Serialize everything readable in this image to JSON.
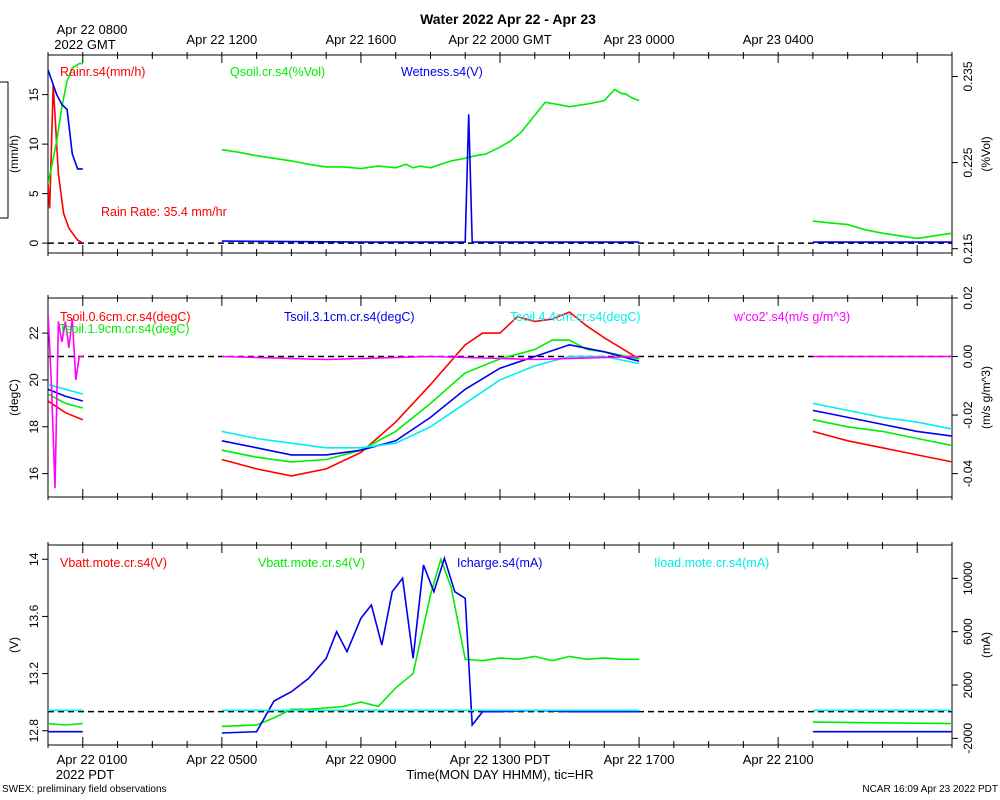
{
  "title": "Water 2022 Apr 22 - Apr 23",
  "top_axis": {
    "ticks": [
      {
        "label": "Apr 22 0800",
        "x": 1
      },
      {
        "label": "Apr 22 1200",
        "x": 5
      },
      {
        "label": "Apr 22 1600",
        "x": 9
      },
      {
        "label": "Apr 22 2000 GMT",
        "x": 13
      },
      {
        "label": "Apr 23 0000",
        "x": 17
      },
      {
        "label": "Apr 23 0400",
        "x": 21
      }
    ],
    "sub_label": "2022 GMT"
  },
  "bottom_axis": {
    "ticks": [
      {
        "label": "Apr 22 0100",
        "x": 1
      },
      {
        "label": "Apr 22 0500",
        "x": 5
      },
      {
        "label": "Apr 22 0900",
        "x": 9
      },
      {
        "label": "Apr 22 1300 PDT",
        "x": 13
      },
      {
        "label": "Apr 22 1700",
        "x": 17
      },
      {
        "label": "Apr 22 2100",
        "x": 21
      }
    ],
    "sub_label": "2022 PDT",
    "xlabel": "Time(MON DAY HHMM), tic=HR"
  },
  "footer": {
    "left": "SWEX: preliminary field observations",
    "right": "NCAR 16:09 Apr 23 2022 PDT"
  },
  "chart_data": [
    {
      "type": "line",
      "panel": "top",
      "x_unit": "hours since Apr 22 0000 PDT",
      "xlim": [
        0,
        26
      ],
      "left_axis": {
        "label": "(mm/h)",
        "ylim": [
          -1,
          19
        ],
        "ticks": [
          0,
          5,
          10,
          15
        ]
      },
      "right_axis": {
        "label": "(%Vol)",
        "ylim": [
          0.2145,
          0.2375
        ],
        "ticks": [
          0.215,
          0.225,
          0.235
        ],
        "tick_labels": [
          "0.215",
          "0.225",
          "0.235"
        ]
      },
      "annotation": {
        "text": "Rain Rate: 35.4 mm/hr",
        "color": "#ff0000"
      },
      "reference_line": {
        "value": 0,
        "axis": "left"
      },
      "series": [
        {
          "name": "Rainr.s4(mm/h)",
          "color": "#ff0000",
          "axis": "left",
          "x": [
            0.0,
            0.05,
            0.15,
            0.3,
            0.45,
            0.6,
            0.85,
            1.0
          ],
          "y": [
            6.0,
            3.5,
            16.0,
            7.0,
            3.0,
            1.5,
            0.3,
            0.0
          ]
        },
        {
          "name": "Qsoil.cr.s4(%Vol)",
          "color": "#00ee00",
          "axis": "right",
          "x": [
            0.0,
            0.1,
            0.25,
            0.4,
            0.55,
            0.7,
            0.9,
            1.0,
            null,
            5.0,
            5.5,
            6.0,
            6.5,
            7.0,
            7.5,
            8.0,
            8.5,
            9.0,
            9.5,
            10.0,
            10.3,
            10.5,
            10.7,
            11.0,
            11.3,
            11.6,
            12.0,
            12.3,
            12.6,
            13.0,
            13.3,
            13.6,
            14.0,
            14.3,
            14.6,
            15.0,
            15.5,
            16.0,
            16.3,
            16.5,
            16.6,
            16.8,
            17.0,
            null,
            22.0,
            22.5,
            23.0,
            23.5,
            24.0,
            24.5,
            25.0,
            25.5,
            26.0
          ],
          "y": [
            0.2225,
            0.2245,
            0.2275,
            0.2315,
            0.2345,
            0.236,
            0.2365,
            0.2365,
            null,
            0.2265,
            0.2262,
            0.2258,
            0.2255,
            0.2252,
            0.2248,
            0.2245,
            0.2245,
            0.2243,
            0.2246,
            0.2244,
            0.2248,
            0.2244,
            0.2246,
            0.2244,
            0.2248,
            0.2252,
            0.2255,
            0.2258,
            0.226,
            0.2268,
            0.2275,
            0.2285,
            0.2305,
            0.232,
            0.2318,
            0.2315,
            0.2318,
            0.2322,
            0.2335,
            0.233,
            0.233,
            0.2325,
            0.2322,
            null,
            0.2182,
            0.218,
            0.2178,
            0.2172,
            0.2168,
            0.2165,
            0.2162,
            0.2165,
            0.2168
          ]
        },
        {
          "name": "Wetness.s4(V)",
          "color": "#0000ee",
          "axis": "left",
          "x": [
            0.0,
            0.1,
            0.25,
            0.4,
            0.55,
            0.7,
            0.85,
            1.0,
            null,
            5.0,
            7.0,
            9.0,
            11.0,
            12.0,
            12.1,
            12.2,
            12.3,
            14.0,
            17.0,
            null,
            22.0,
            26.0
          ],
          "y": [
            17.5,
            16.5,
            15.0,
            14.0,
            13.5,
            9.0,
            7.5,
            7.5,
            null,
            0.2,
            0.15,
            0.1,
            0.1,
            0.1,
            13.0,
            0.1,
            0.1,
            0.1,
            0.1,
            null,
            0.1,
            0.1
          ]
        }
      ]
    },
    {
      "type": "line",
      "panel": "middle",
      "x_unit": "hours since Apr 22 0000 PDT",
      "xlim": [
        0,
        26
      ],
      "left_axis": {
        "label": "(degC)",
        "ylim": [
          15,
          23.5
        ],
        "ticks": [
          16,
          18,
          20,
          22
        ]
      },
      "right_axis": {
        "label": "(m/s g/m^3)",
        "ylim": [
          -0.048,
          0.02
        ],
        "ticks": [
          -0.04,
          -0.02,
          0.0,
          0.02
        ],
        "tick_labels": [
          "-0.04",
          "-0.02",
          "0.00",
          "0.02"
        ]
      },
      "reference_line": {
        "value": 0.0,
        "axis": "right"
      },
      "series": [
        {
          "name": "Tsoil.0.6cm.cr.s4(degC)",
          "color": "#ff0000",
          "axis": "left",
          "x": [
            0.0,
            0.5,
            1.0,
            null,
            5.0,
            6.0,
            7.0,
            8.0,
            9.0,
            10.0,
            11.0,
            12.0,
            12.5,
            13.0,
            13.5,
            14.0,
            14.5,
            15.0,
            15.5,
            16.0,
            17.0,
            null,
            22.0,
            23.0,
            24.0,
            25.0,
            26.0
          ],
          "y": [
            19.1,
            18.6,
            18.3,
            null,
            16.6,
            16.2,
            15.9,
            16.2,
            16.9,
            18.2,
            19.8,
            21.5,
            22.0,
            22.0,
            22.7,
            22.5,
            22.6,
            22.9,
            22.3,
            21.8,
            20.9,
            null,
            17.8,
            17.4,
            17.1,
            16.8,
            16.5
          ]
        },
        {
          "name": "Tsoil.1.9cm.cr.s4(degC)",
          "color": "#00ee00",
          "axis": "left",
          "x": [
            0.0,
            0.5,
            1.0,
            null,
            5.0,
            6.0,
            7.0,
            8.0,
            9.0,
            10.0,
            11.0,
            12.0,
            13.0,
            14.0,
            14.5,
            15.0,
            15.5,
            16.0,
            17.0,
            null,
            22.0,
            23.0,
            24.0,
            25.0,
            26.0
          ],
          "y": [
            19.4,
            19.0,
            18.8,
            null,
            17.0,
            16.7,
            16.5,
            16.6,
            17.0,
            17.8,
            19.0,
            20.3,
            20.9,
            21.3,
            21.7,
            21.7,
            21.3,
            21.2,
            20.9,
            null,
            18.3,
            18.0,
            17.8,
            17.5,
            17.2
          ]
        },
        {
          "name": "Tsoil.3.1cm.cr.s4(degC)",
          "color": "#0000ee",
          "axis": "left",
          "x": [
            0.0,
            0.5,
            1.0,
            null,
            5.0,
            6.0,
            7.0,
            8.0,
            9.0,
            10.0,
            11.0,
            12.0,
            13.0,
            14.0,
            15.0,
            16.0,
            17.0,
            null,
            22.0,
            23.0,
            24.0,
            25.0,
            26.0
          ],
          "y": [
            19.6,
            19.3,
            19.1,
            null,
            17.4,
            17.1,
            16.8,
            16.8,
            17.0,
            17.4,
            18.4,
            19.6,
            20.5,
            21.0,
            21.5,
            21.2,
            20.8,
            null,
            18.7,
            18.4,
            18.1,
            17.8,
            17.6
          ]
        },
        {
          "name": "Tsoil.4.4cm.cr.s4(degC)",
          "color": "#00eeee",
          "axis": "left",
          "x": [
            0.0,
            0.5,
            1.0,
            null,
            5.0,
            6.0,
            7.0,
            8.0,
            9.0,
            10.0,
            11.0,
            12.0,
            13.0,
            14.0,
            15.0,
            16.0,
            17.0,
            null,
            22.0,
            23.0,
            24.0,
            25.0,
            26.0
          ],
          "y": [
            19.8,
            19.6,
            19.4,
            null,
            17.8,
            17.5,
            17.3,
            17.1,
            17.1,
            17.3,
            18.0,
            19.0,
            20.0,
            20.6,
            21.0,
            21.0,
            20.7,
            null,
            19.0,
            18.7,
            18.4,
            18.2,
            17.9
          ]
        },
        {
          "name": "w'co2'.s4(m/s g/m^3)",
          "color": "#ff00ff",
          "axis": "right",
          "x": [
            0.0,
            0.1,
            0.2,
            0.3,
            0.4,
            0.5,
            0.6,
            0.7,
            0.8,
            0.9,
            1.0,
            null,
            5.0,
            8.0,
            11.0,
            14.0,
            17.0,
            null,
            22.0,
            26.0
          ],
          "y": [
            0.015,
            -0.01,
            -0.045,
            0.012,
            0.005,
            0.012,
            0.003,
            0.013,
            -0.008,
            0.0,
            0.0,
            null,
            0.0,
            -0.001,
            0.0,
            -0.001,
            0.0,
            null,
            0.0,
            0.0
          ]
        }
      ]
    },
    {
      "type": "line",
      "panel": "bottom",
      "x_unit": "hours since Apr 22 0000 PDT",
      "xlim": [
        0,
        26
      ],
      "left_axis": {
        "label": "(V)",
        "ylim": [
          12.7,
          14.1
        ],
        "ticks": [
          12.8,
          13.2,
          13.6,
          14.0
        ]
      },
      "right_axis": {
        "label": "(mA)",
        "ylim": [
          -2500,
          12500
        ],
        "ticks": [
          -2000,
          2000,
          6000,
          10000
        ]
      },
      "reference_line": {
        "value": 0,
        "axis": "right"
      },
      "series": [
        {
          "name": "Vbatt.mote.cr.s4(V)",
          "color": "#ff0000",
          "axis": "left",
          "x": [],
          "y": []
        },
        {
          "name": "Vbatt.mote.cr.s4(V)",
          "color": "#00ee00",
          "axis": "left",
          "x": [
            0.0,
            0.5,
            1.0,
            null,
            5.0,
            6.0,
            6.5,
            7.0,
            7.5,
            8.0,
            8.5,
            9.0,
            9.5,
            10.0,
            10.5,
            11.0,
            11.3,
            11.6,
            12.0,
            12.5,
            13.0,
            13.5,
            14.0,
            14.5,
            15.0,
            15.5,
            16.0,
            16.5,
            17.0,
            null,
            22.0,
            26.0
          ],
          "y": [
            12.85,
            12.84,
            12.85,
            null,
            12.83,
            12.84,
            12.89,
            12.95,
            12.95,
            12.96,
            12.97,
            13.0,
            12.97,
            13.1,
            13.2,
            13.75,
            14.0,
            13.8,
            13.3,
            13.29,
            13.31,
            13.3,
            13.32,
            13.29,
            13.32,
            13.3,
            13.31,
            13.3,
            13.3,
            null,
            12.86,
            12.85
          ]
        },
        {
          "name": "Icharge.s4(mA)",
          "color": "#0000ee",
          "axis": "right",
          "x": [
            0.0,
            0.5,
            1.0,
            null,
            5.0,
            6.0,
            6.5,
            7.0,
            7.5,
            8.0,
            8.3,
            8.6,
            9.0,
            9.3,
            9.6,
            9.9,
            10.2,
            10.5,
            10.8,
            11.1,
            11.4,
            11.7,
            12.0,
            12.2,
            12.5,
            13.0,
            14.0,
            15.0,
            16.0,
            17.0,
            null,
            22.0,
            26.0
          ],
          "y": [
            -1500,
            -1500,
            -1500,
            null,
            -1600,
            -1500,
            800,
            1500,
            2500,
            4000,
            6000,
            4500,
            7000,
            8000,
            5000,
            9000,
            10000,
            4000,
            11000,
            9000,
            11500,
            9000,
            8500,
            -1000,
            0,
            0,
            100,
            0,
            0,
            0,
            null,
            -1500,
            -1500
          ]
        },
        {
          "name": "Iload.mote.cr.s4(mA)",
          "color": "#00eeee",
          "axis": "right",
          "x": [
            0.0,
            1.0,
            null,
            5.0,
            17.0,
            null,
            22.0,
            26.0
          ],
          "y": [
            100,
            100,
            null,
            100,
            100,
            null,
            100,
            100
          ]
        }
      ]
    }
  ]
}
